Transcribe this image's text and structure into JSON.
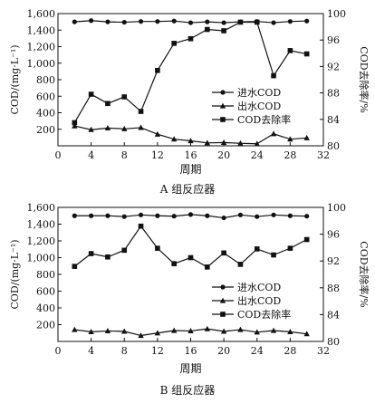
{
  "chart_data": [
    {
      "type": "line",
      "caption": "A 组反应器",
      "xlabel": "周期",
      "ylabel": "COD/(mg·L⁻¹)",
      "y2label": "COD去除率/%",
      "xlim": [
        0,
        32
      ],
      "ylim": [
        0,
        1600
      ],
      "y2lim": [
        80,
        100
      ],
      "xticks": [
        0,
        4,
        8,
        12,
        16,
        20,
        24,
        28,
        32
      ],
      "yticks": [
        200,
        400,
        600,
        800,
        1000,
        1200,
        1400,
        1600
      ],
      "y2ticks": [
        80,
        84,
        88,
        92,
        96,
        100
      ],
      "legend_position": "right",
      "x": [
        2,
        4,
        6,
        8,
        10,
        12,
        14,
        16,
        18,
        20,
        22,
        24,
        26,
        28,
        30
      ],
      "series": [
        {
          "name": "进水COD",
          "marker": "circle",
          "axis": "left",
          "values": [
            1500,
            1515,
            1500,
            1495,
            1505,
            1505,
            1510,
            1490,
            1500,
            1490,
            1500,
            1505,
            1490,
            1505,
            1510
          ]
        },
        {
          "name": "出水COD",
          "marker": "triangle",
          "axis": "left",
          "values": [
            240,
            195,
            215,
            205,
            220,
            140,
            80,
            60,
            35,
            40,
            30,
            25,
            145,
            80,
            95
          ]
        },
        {
          "name": "COD去除率",
          "marker": "square",
          "axis": "right",
          "values": [
            83.5,
            87.8,
            86.4,
            87.4,
            85.2,
            91.4,
            95.5,
            96.2,
            97.6,
            97.4,
            98.7,
            98.7,
            90.6,
            94.4,
            93.9
          ]
        }
      ]
    },
    {
      "type": "line",
      "caption": "B 组反应器",
      "xlabel": "周期",
      "ylabel": "COD/(mg·L⁻¹)",
      "y2label": "COD去除率/%",
      "xlim": [
        0,
        32
      ],
      "ylim": [
        0,
        1600
      ],
      "y2lim": [
        80,
        100
      ],
      "xticks": [
        0,
        4,
        8,
        12,
        16,
        20,
        24,
        28,
        32
      ],
      "yticks": [
        200,
        400,
        600,
        800,
        1000,
        1200,
        1400,
        1600
      ],
      "y2ticks": [
        80,
        84,
        88,
        92,
        96,
        100
      ],
      "legend_position": "right",
      "x": [
        2,
        4,
        6,
        8,
        10,
        12,
        14,
        16,
        18,
        20,
        22,
        24,
        26,
        28,
        30
      ],
      "series": [
        {
          "name": "进水COD",
          "marker": "circle",
          "axis": "left",
          "values": [
            1500,
            1500,
            1500,
            1490,
            1510,
            1500,
            1495,
            1515,
            1500,
            1475,
            1510,
            1490,
            1510,
            1500,
            1495
          ]
        },
        {
          "name": "出水COD",
          "marker": "triangle",
          "axis": "left",
          "values": [
            140,
            115,
            125,
            120,
            70,
            100,
            130,
            125,
            150,
            120,
            140,
            110,
            130,
            115,
            90
          ]
        },
        {
          "name": "COD去除率",
          "marker": "square",
          "axis": "right",
          "values": [
            91.2,
            93.1,
            92.6,
            93.6,
            97.2,
            93.9,
            91.6,
            92.5,
            91.1,
            93.2,
            91.5,
            93.8,
            92.9,
            93.9,
            95.2
          ]
        }
      ]
    }
  ]
}
